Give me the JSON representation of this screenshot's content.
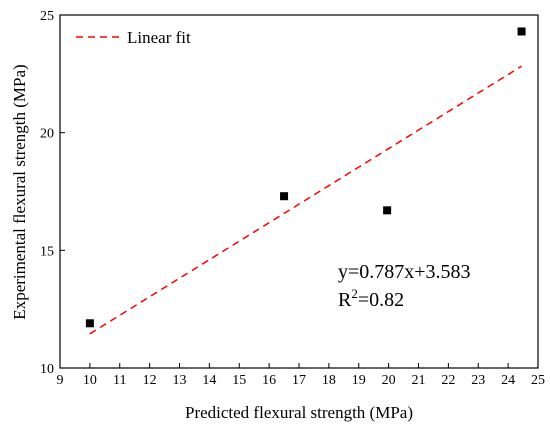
{
  "chart_data": {
    "type": "scatter",
    "title": "",
    "xlabel": "Predicted flexural strength (MPa)",
    "ylabel": "Experimental flexural strength (MPa)",
    "xlim": [
      9,
      25
    ],
    "ylim": [
      10,
      25
    ],
    "xticks": [
      9,
      10,
      11,
      12,
      13,
      14,
      15,
      16,
      17,
      18,
      19,
      20,
      21,
      22,
      23,
      24,
      25
    ],
    "yticks": [
      10,
      15,
      20,
      25
    ],
    "grid": false,
    "legend": {
      "placement": "top-left",
      "entries": [
        {
          "label": "Linear fit",
          "style": "dashed",
          "color": "#ff0000"
        }
      ]
    },
    "series": [
      {
        "kind": "points",
        "marker": "square",
        "color": "#000000",
        "points": [
          {
            "x": 10.0,
            "y": 11.9
          },
          {
            "x": 16.5,
            "y": 17.3
          },
          {
            "x": 19.95,
            "y": 16.7
          },
          {
            "x": 24.45,
            "y": 24.3
          }
        ]
      },
      {
        "name": "Linear fit",
        "kind": "line",
        "style": "dashed",
        "color": "#ff0000",
        "slope": 0.787,
        "intercept": 3.583,
        "x_range": [
          10.0,
          24.45
        ]
      }
    ],
    "annotations": {
      "equation": "y=0.787x+3.583",
      "r2_prefix": "R",
      "r2_sup": "2",
      "r2_value": "=0.82"
    }
  }
}
